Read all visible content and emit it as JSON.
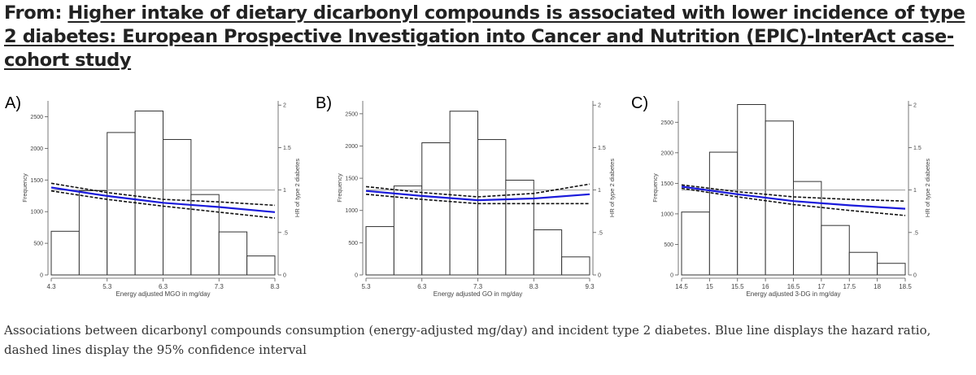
{
  "header": {
    "prefix": "From:",
    "link_text": "Higher intake of dietary dicarbonyl compounds is associated with lower incidence of type 2 diabetes: European Prospective Investigation into Cancer and Nutrition (EPIC)-InterAct case-cohort study"
  },
  "caption": "Associations between dicarbonyl compounds consumption (energy-adjusted mg/day) and incident type 2 diabetes. Blue line displays the hazard ratio, dashed lines display the 95% confidence interval",
  "colors": {
    "hr_line": "#1a1adb",
    "ci_line": "#111111",
    "ref_line": "#999999",
    "bar_stroke": "#333333"
  },
  "chart_data": [
    {
      "panel_label": "A)",
      "type": "histogram+line",
      "xlabel": "Energy adjusted MGO in mg/day",
      "ylabel_left": "Frequency",
      "ylabel_right": "HR of type 2 diabetes",
      "xlim": [
        4.3,
        8.3
      ],
      "xticks": [
        "4.3",
        "5.3",
        "6.3",
        "7.3",
        "8.3"
      ],
      "ylim_left": [
        0,
        2750
      ],
      "yticks_left": [
        "0",
        "500",
        "1000",
        "1500",
        "2000",
        "2500"
      ],
      "ylim_right": [
        0,
        2.05
      ],
      "yticks_right": [
        "0",
        ".5",
        "1",
        "1.5",
        "2"
      ],
      "bins": [
        {
          "x0": 4.3,
          "x1": 4.8,
          "freq": 690
        },
        {
          "x0": 4.8,
          "x1": 5.3,
          "freq": 1330
        },
        {
          "x0": 5.3,
          "x1": 5.8,
          "freq": 2250
        },
        {
          "x0": 5.8,
          "x1": 6.3,
          "freq": 2590
        },
        {
          "x0": 6.3,
          "x1": 6.8,
          "freq": 2140
        },
        {
          "x0": 6.8,
          "x1": 7.3,
          "freq": 1270
        },
        {
          "x0": 7.3,
          "x1": 7.8,
          "freq": 680
        },
        {
          "x0": 7.8,
          "x1": 8.3,
          "freq": 300
        }
      ],
      "hr": {
        "x": [
          4.3,
          5.3,
          6.3,
          7.3,
          8.3
        ],
        "y": [
          1.03,
          0.93,
          0.85,
          0.8,
          0.74
        ]
      },
      "ci_upper": {
        "x": [
          4.3,
          5.3,
          6.3,
          7.3,
          8.3
        ],
        "y": [
          1.08,
          0.97,
          0.89,
          0.86,
          0.82
        ]
      },
      "ci_lower": {
        "x": [
          4.3,
          5.3,
          6.3,
          7.3,
          8.3
        ],
        "y": [
          0.99,
          0.89,
          0.81,
          0.74,
          0.67
        ]
      },
      "reference_hr": 1
    },
    {
      "panel_label": "B)",
      "type": "histogram+line",
      "xlabel": "Energy adjusted GO in mg/day",
      "ylabel_left": "Frequency",
      "ylabel_right": "HR of type 2 diabetes",
      "xlim": [
        5.3,
        9.3
      ],
      "xticks": [
        "5.3",
        "6.3",
        "7.3",
        "8.3",
        "9.3"
      ],
      "ylim_left": [
        0,
        2700
      ],
      "yticks_left": [
        "0",
        "500",
        "1000",
        "1500",
        "2000",
        "2500"
      ],
      "ylim_right": [
        0,
        2.05
      ],
      "yticks_right": [
        "0",
        ".5",
        "1",
        "1.5",
        "2"
      ],
      "bins": [
        {
          "x0": 5.3,
          "x1": 5.8,
          "freq": 750
        },
        {
          "x0": 5.8,
          "x1": 6.3,
          "freq": 1380
        },
        {
          "x0": 6.3,
          "x1": 6.8,
          "freq": 2050
        },
        {
          "x0": 6.8,
          "x1": 7.3,
          "freq": 2540
        },
        {
          "x0": 7.3,
          "x1": 7.8,
          "freq": 2100
        },
        {
          "x0": 7.8,
          "x1": 8.3,
          "freq": 1470
        },
        {
          "x0": 8.3,
          "x1": 8.8,
          "freq": 700
        },
        {
          "x0": 8.8,
          "x1": 9.3,
          "freq": 280
        }
      ],
      "hr": {
        "x": [
          5.3,
          6.3,
          7.3,
          8.3,
          9.3
        ],
        "y": [
          0.99,
          0.93,
          0.88,
          0.9,
          0.95
        ]
      },
      "ci_upper": {
        "x": [
          5.3,
          6.3,
          7.3,
          8.3,
          9.3
        ],
        "y": [
          1.04,
          0.97,
          0.92,
          0.96,
          1.07
        ]
      },
      "ci_lower": {
        "x": [
          5.3,
          6.3,
          7.3,
          8.3,
          9.3
        ],
        "y": [
          0.95,
          0.89,
          0.84,
          0.84,
          0.84
        ]
      },
      "reference_hr": 1
    },
    {
      "panel_label": "C)",
      "type": "histogram+line",
      "xlabel": "Energy adjusted 3-DG in mg/day",
      "ylabel_left": "Frequency",
      "ylabel_right": "HR of type 2 diabetes",
      "xlim": [
        14.5,
        18.5
      ],
      "xticks": [
        "14.5",
        "15",
        "15.5",
        "16",
        "16.5",
        "17",
        "17.5",
        "18",
        "18.5"
      ],
      "ylim_left": [
        0,
        2850
      ],
      "yticks_left": [
        "0",
        "500",
        "1000",
        "1500",
        "2000",
        "2500"
      ],
      "ylim_right": [
        0,
        2.05
      ],
      "yticks_right": [
        "0",
        ".5",
        "1",
        "1.5",
        "2"
      ],
      "bins": [
        {
          "x0": 14.5,
          "x1": 15.0,
          "freq": 1030
        },
        {
          "x0": 15.0,
          "x1": 15.5,
          "freq": 2010
        },
        {
          "x0": 15.5,
          "x1": 16.0,
          "freq": 2790
        },
        {
          "x0": 16.0,
          "x1": 16.5,
          "freq": 2520
        },
        {
          "x0": 16.5,
          "x1": 17.0,
          "freq": 1530
        },
        {
          "x0": 17.0,
          "x1": 17.5,
          "freq": 810
        },
        {
          "x0": 17.5,
          "x1": 18.0,
          "freq": 370
        },
        {
          "x0": 18.0,
          "x1": 18.5,
          "freq": 190
        }
      ],
      "hr": {
        "x": [
          14.5,
          15.5,
          16.5,
          17.5,
          18.5
        ],
        "y": [
          1.04,
          0.95,
          0.87,
          0.82,
          0.78
        ]
      },
      "ci_upper": {
        "x": [
          14.5,
          15.5,
          16.5,
          17.5,
          18.5
        ],
        "y": [
          1.06,
          0.98,
          0.92,
          0.89,
          0.87
        ]
      },
      "ci_lower": {
        "x": [
          14.5,
          15.5,
          16.5,
          17.5,
          18.5
        ],
        "y": [
          1.02,
          0.92,
          0.83,
          0.76,
          0.7
        ]
      },
      "reference_hr": 1
    }
  ]
}
